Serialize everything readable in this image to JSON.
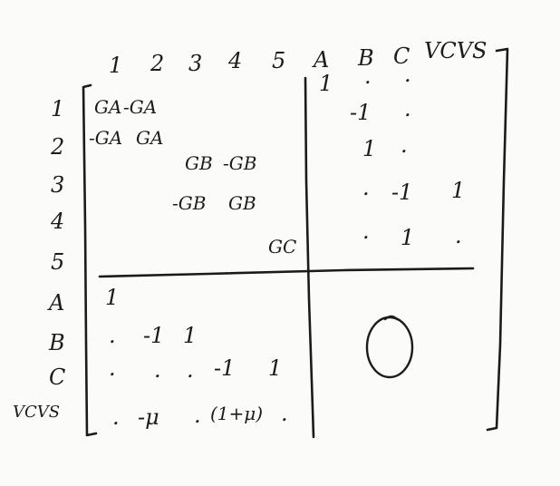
{
  "diagram": {
    "column_headers": [
      "1",
      "2",
      "3",
      "4",
      "5",
      "A",
      "B",
      "C",
      "VCVS"
    ],
    "row_headers": [
      "1",
      "2",
      "3",
      "4",
      "5",
      "A",
      "B",
      "C",
      "VCVS"
    ],
    "G_block": {
      "r1": [
        "GA",
        "-GA"
      ],
      "r2": [
        "-GA",
        "GA"
      ],
      "r3": [
        "GB",
        "-GB"
      ],
      "r4": [
        "-GB",
        "GB"
      ],
      "r5": [
        "GC"
      ]
    },
    "B_block": {
      "r1": [
        "1",
        ".",
        "."
      ],
      "r2": [
        "-1",
        "."
      ],
      "r3": [
        "1",
        "."
      ],
      "r4": [
        ".",
        "-1",
        "1"
      ],
      "r5": [
        ".",
        "1",
        "."
      ]
    },
    "C_block": {
      "rA": [
        "1"
      ],
      "rB": [
        ".",
        "-1",
        "1"
      ],
      "rC": [
        ".",
        ".",
        ".",
        "-1",
        "1"
      ],
      "rVCVS": [
        ".",
        "-μ",
        ".",
        "(1+μ)",
        "."
      ]
    },
    "D_block": {
      "symbol": "O"
    }
  }
}
